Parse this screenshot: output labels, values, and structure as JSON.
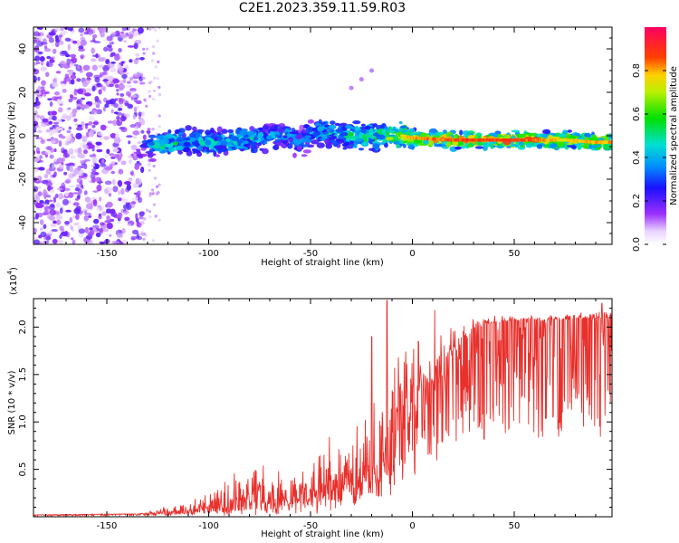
{
  "title": "C2E1.2023.359.11.59.R03",
  "colors": {
    "snr_line": "#e8302c",
    "noise_points": "#7a1fff",
    "axis": "#000000"
  },
  "chart_data": [
    {
      "type": "heatmap",
      "name": "spectrogram",
      "xlabel": "Height of straight line (km)",
      "ylabel": "Frequency (Hz)",
      "xlim": [
        -186,
        98
      ],
      "ylim": [
        -50,
        50
      ],
      "xticks": [
        -150,
        -100,
        -50,
        0,
        50
      ],
      "yticks": [
        -40,
        -20,
        0,
        20,
        40
      ],
      "colorbar": {
        "label": "Normalized spectral amplitude",
        "range": [
          0.0,
          1.0
        ],
        "ticks": [
          0.0,
          0.2,
          0.4,
          0.6,
          0.8
        ],
        "tick_labels": [
          "0.0",
          "0.2",
          "0.4",
          "0.6",
          "0.8"
        ]
      },
      "noise_region": {
        "x": [
          -186,
          -132
        ],
        "amplitude": 0.15
      },
      "ridge": [
        {
          "x": -132,
          "freq": -4,
          "amp": 0.25
        },
        {
          "x": -125,
          "freq": -4,
          "amp": 0.55
        },
        {
          "x": -110,
          "freq": -3,
          "amp": 0.45
        },
        {
          "x": -90,
          "freq": -3,
          "amp": 0.5
        },
        {
          "x": -75,
          "freq": -1,
          "amp": 0.45
        },
        {
          "x": -62,
          "freq": 1,
          "amp": 0.4
        },
        {
          "x": -55,
          "freq": -3,
          "amp": 0.35
        },
        {
          "x": -48,
          "freq": 2,
          "amp": 0.45
        },
        {
          "x": -38,
          "freq": 1,
          "amp": 0.45
        },
        {
          "x": -28,
          "freq": 0,
          "amp": 0.55
        },
        {
          "x": -15,
          "freq": -1,
          "amp": 0.6
        },
        {
          "x": -5,
          "freq": 0,
          "amp": 0.75
        },
        {
          "x": 0,
          "freq": -1,
          "amp": 0.8
        },
        {
          "x": 20,
          "freq": -2,
          "amp": 0.85
        },
        {
          "x": 50,
          "freq": -2,
          "amp": 0.88
        },
        {
          "x": 75,
          "freq": -2,
          "amp": 0.75
        },
        {
          "x": 90,
          "freq": -3,
          "amp": 0.8
        },
        {
          "x": 98,
          "freq": -3,
          "amp": 0.8
        }
      ],
      "faint_streak": [
        {
          "x": -30,
          "freq": 22
        },
        {
          "x": -25,
          "freq": 26
        },
        {
          "x": -20,
          "freq": 30
        }
      ]
    },
    {
      "type": "line",
      "name": "snr",
      "xlabel": "Height of straight line (km)",
      "ylabel": "SNR (10 * v/v)",
      "scale_label": "(x10",
      "scale_exponent": "4",
      "scale_suffix": ")",
      "xlim": [
        -186,
        98
      ],
      "ylim": [
        0,
        2.3
      ],
      "xticks": [
        -150,
        -100,
        -50,
        0,
        50
      ],
      "yticks": [
        0.5,
        1.0,
        1.5,
        2.0
      ],
      "ytick_labels": [
        "0.5",
        "1.0",
        "1.5",
        "2.0"
      ],
      "envelope": [
        {
          "x": -186,
          "base": 0.02,
          "amp": 0.0
        },
        {
          "x": -135,
          "base": 0.03,
          "amp": 0.0
        },
        {
          "x": -125,
          "base": 0.04,
          "amp": 0.05
        },
        {
          "x": -110,
          "base": 0.06,
          "amp": 0.1
        },
        {
          "x": -100,
          "base": 0.08,
          "amp": 0.2
        },
        {
          "x": -90,
          "base": 0.12,
          "amp": 0.35
        },
        {
          "x": -80,
          "base": 0.18,
          "amp": 0.55
        },
        {
          "x": -70,
          "base": 0.15,
          "amp": 0.4
        },
        {
          "x": -60,
          "base": 0.15,
          "amp": 0.45
        },
        {
          "x": -50,
          "base": 0.25,
          "amp": 0.6
        },
        {
          "x": -40,
          "base": 0.3,
          "amp": 0.65
        },
        {
          "x": -30,
          "base": 0.35,
          "amp": 0.75
        },
        {
          "x": -20,
          "base": 0.45,
          "amp": 0.95
        },
        {
          "x": -12,
          "base": 0.7,
          "amp": 1.2
        },
        {
          "x": -5,
          "base": 1.05,
          "amp": 0.85
        },
        {
          "x": 5,
          "base": 1.35,
          "amp": 0.65
        },
        {
          "x": 15,
          "base": 1.6,
          "amp": 0.5
        },
        {
          "x": 25,
          "base": 1.85,
          "amp": 0.25
        },
        {
          "x": 30,
          "base": 2.0,
          "amp": 0.12
        },
        {
          "x": 45,
          "base": 2.06,
          "amp": 0.06
        },
        {
          "x": 70,
          "base": 2.08,
          "amp": 0.06
        },
        {
          "x": 98,
          "base": 2.1,
          "amp": 0.08
        }
      ],
      "peaks": [
        {
          "x": -12.5,
          "y": 2.28
        },
        {
          "x": 11,
          "y": 2.18
        },
        {
          "x": -20,
          "y": 1.9
        },
        {
          "x": 3,
          "y": 1.85
        },
        {
          "x": 93,
          "y": 2.25
        }
      ]
    }
  ]
}
